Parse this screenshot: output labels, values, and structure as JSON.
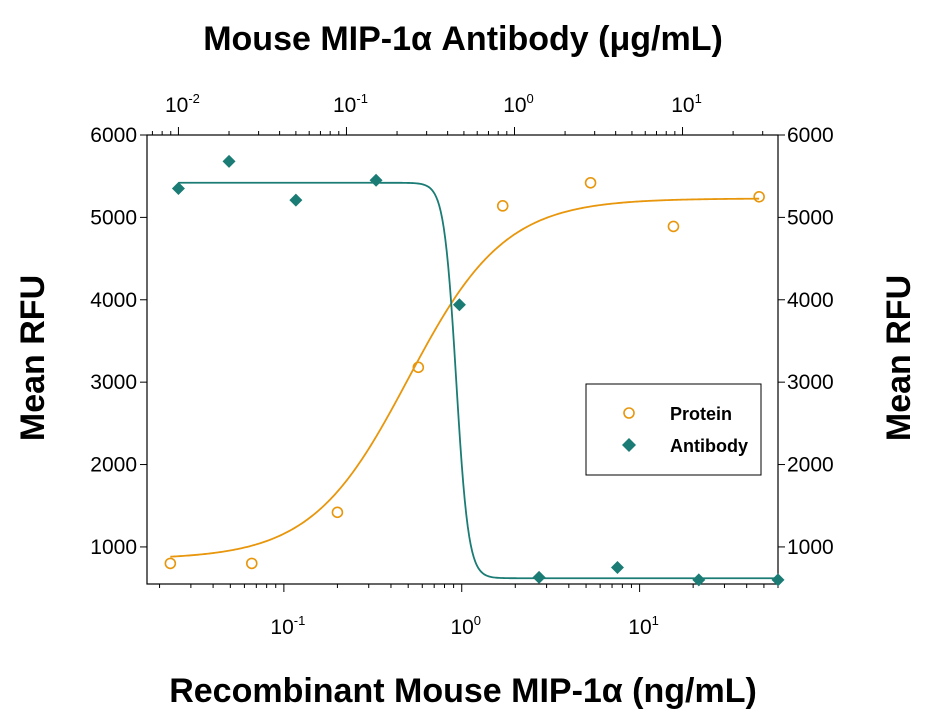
{
  "chart_data": {
    "type": "scatter",
    "top_axis_title": "Mouse MIP-1α Antibody (μg/mL)",
    "bottom_axis_title": "Recombinant Mouse MIP-1α (ng/mL)",
    "ylabel_left": "Mean RFU",
    "ylabel_right": "Mean RFU",
    "x_scale": "log",
    "xlim_bottom": [
      0.017,
      60
    ],
    "xlim_top": [
      0.0065,
      37
    ],
    "ylim": [
      550,
      6000
    ],
    "y_ticks": [
      "1000",
      "2000",
      "3000",
      "4000",
      "5000",
      "6000"
    ],
    "x_ticks_bottom": [
      {
        "base": "10",
        "exp": "-1",
        "value": 0.1
      },
      {
        "base": "10",
        "exp": "0",
        "value": 1
      },
      {
        "base": "10",
        "exp": "1",
        "value": 10
      }
    ],
    "x_ticks_top": [
      {
        "base": "10",
        "exp": "-2",
        "value": 0.01
      },
      {
        "base": "10",
        "exp": "-1",
        "value": 0.1
      },
      {
        "base": "10",
        "exp": "0",
        "value": 1
      },
      {
        "base": "10",
        "exp": "1",
        "value": 10
      }
    ],
    "legend_position": "right",
    "series": [
      {
        "name": "Protein",
        "axis": "bottom",
        "color": "#e8960c",
        "marker": "open-circle",
        "x": [
          0.023,
          0.066,
          0.2,
          0.57,
          1.7,
          5.3,
          15.5,
          47.0
        ],
        "y": [
          800,
          800,
          1420,
          3180,
          5140,
          5420,
          4890,
          5250
        ],
        "fit": {
          "model": "4PL",
          "bottom": 850,
          "top": 5230,
          "ec50": 0.5,
          "hill": 1.6
        }
      },
      {
        "name": "Antibody",
        "axis": "top",
        "color": "#1a7c74",
        "marker": "filled-diamond",
        "x": [
          0.01,
          0.02,
          0.05,
          0.15,
          0.47,
          1.4,
          4.1,
          12.5,
          37.0
        ],
        "y": [
          5350,
          5680,
          5210,
          5450,
          3940,
          630,
          750,
          600,
          600
        ],
        "fit": {
          "model": "4PL",
          "bottom": 620,
          "top": 5420,
          "ec50": 0.45,
          "hill": -12
        }
      }
    ]
  }
}
